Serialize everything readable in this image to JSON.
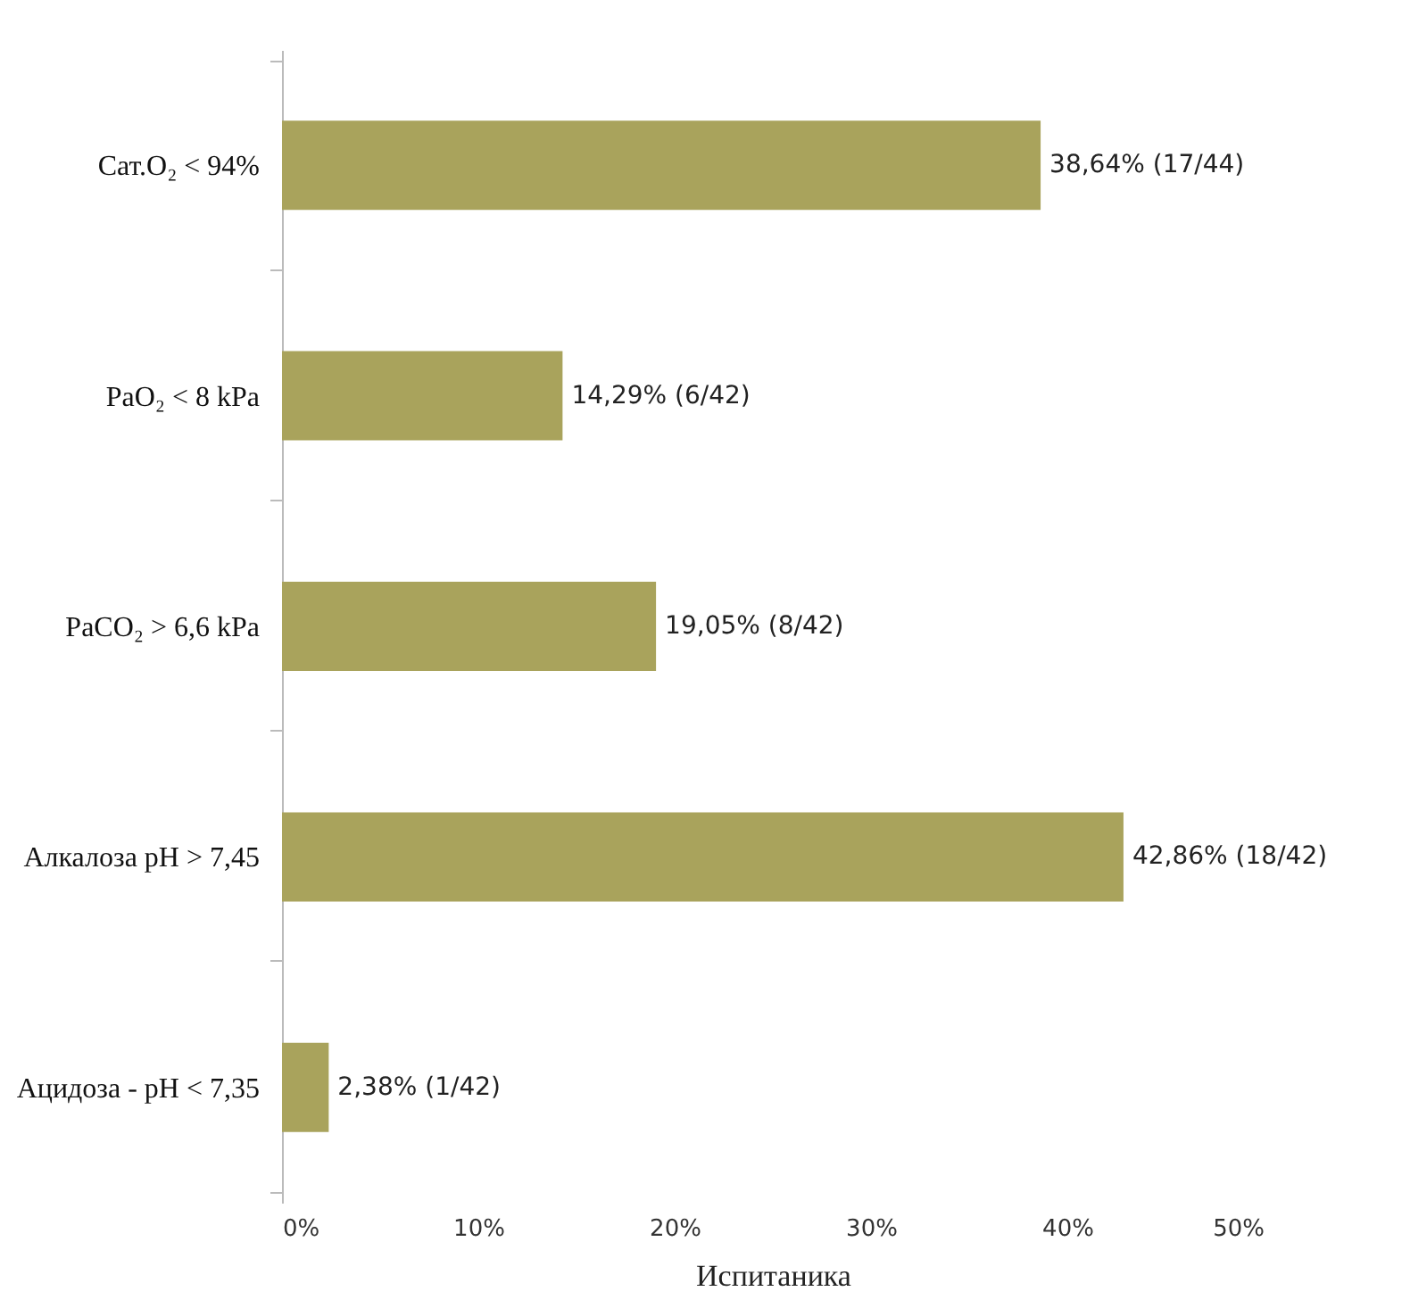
{
  "chart_data": {
    "type": "bar",
    "orientation": "horizontal",
    "xlabel": "Испитаника",
    "categories": [
      "Сат.O₂ < 94%",
      "PaO₂ < 8 kPa",
      "PaCO₂ > 6,6 kPa",
      "Алкалоза pH > 7,45",
      "Ацидоза - pH < 7,35"
    ],
    "values": [
      38.64,
      14.29,
      19.05,
      42.86,
      2.38
    ],
    "value_labels": [
      "38,64% (17/44)",
      "14,29% (6/42)",
      "19,05% (8/42)",
      "42,86% (18/42)",
      "2,38% (1/42)"
    ],
    "color": "#a9a35c",
    "xlim": [
      0,
      50
    ],
    "xticks": [
      {
        "value": 0,
        "label": "0%"
      },
      {
        "value": 10,
        "label": "10%"
      },
      {
        "value": 20,
        "label": "20%"
      },
      {
        "value": 30,
        "label": "30%"
      },
      {
        "value": 40,
        "label": "40%"
      },
      {
        "value": 50,
        "label": "50%"
      }
    ],
    "grid": false
  }
}
